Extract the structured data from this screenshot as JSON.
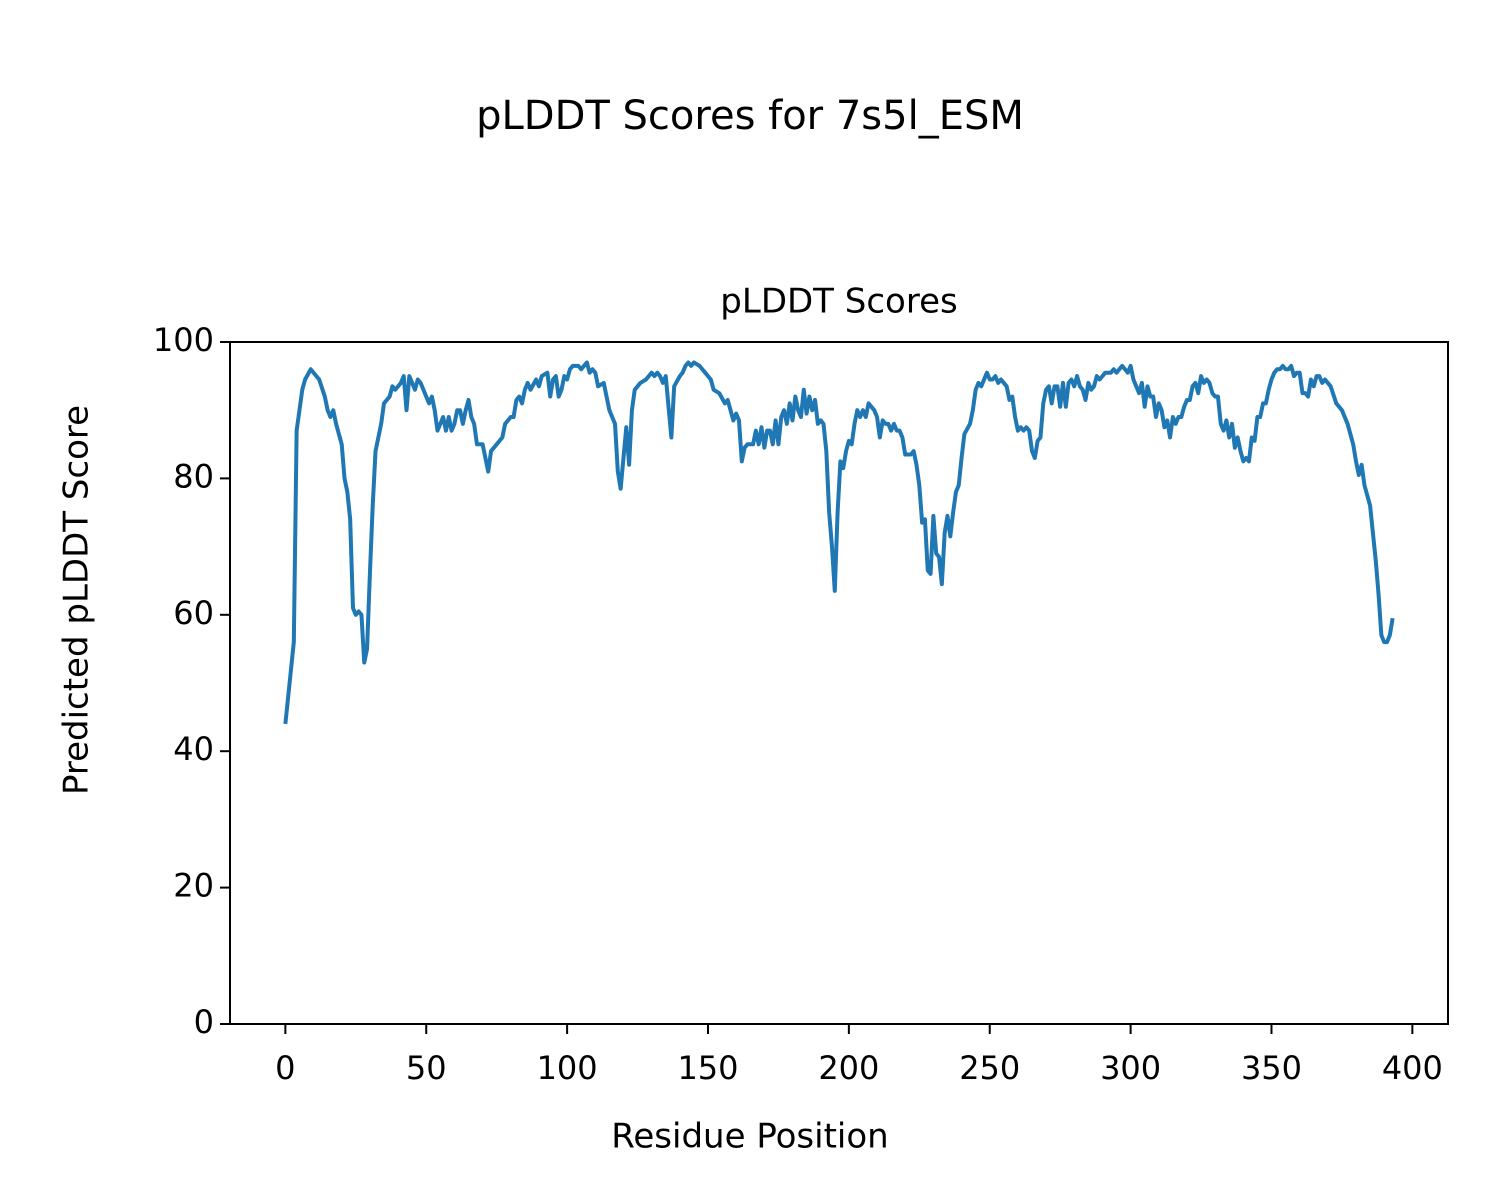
{
  "chart_data": {
    "type": "line",
    "title": "pLDDT Scores for 7s5l_ESM",
    "subtitle": "pLDDT Scores",
    "x_label": "Residue Position",
    "y_label": "Predicted pLDDT Score",
    "color": "#1f77b4",
    "xlim": [
      -19.65,
      412.65
    ],
    "ylim": [
      0,
      100
    ],
    "xticks": [
      0,
      50,
      100,
      150,
      200,
      250,
      300,
      350,
      400
    ],
    "yticks": [
      0,
      20,
      40,
      60,
      80,
      100
    ],
    "x": [
      0,
      3,
      4,
      6,
      7,
      9,
      11,
      12,
      14,
      15,
      16,
      17,
      18,
      20,
      21,
      22,
      23,
      24,
      25,
      26,
      27,
      28,
      29,
      30,
      31,
      32,
      34,
      35,
      37,
      38,
      39,
      41,
      42,
      43,
      44,
      46,
      47,
      48,
      50,
      51,
      52,
      53,
      54,
      55,
      56,
      57,
      58,
      59,
      60,
      61,
      62,
      63,
      64,
      65,
      66,
      67,
      68,
      70,
      71,
      72,
      73,
      75,
      76,
      77,
      78,
      80,
      81,
      82,
      83,
      84,
      85,
      86,
      87,
      89,
      90,
      91,
      93,
      94,
      95,
      96,
      97,
      98,
      99,
      100,
      101,
      102,
      104,
      105,
      106,
      107,
      108,
      109,
      110,
      111,
      113,
      114,
      115,
      117,
      118,
      119,
      120,
      121,
      122,
      123,
      124,
      126,
      128,
      130,
      131,
      132,
      133,
      134,
      135,
      137,
      138,
      140,
      141,
      142,
      143,
      144,
      145,
      147,
      149,
      151,
      152,
      154,
      156,
      157,
      158,
      159,
      160,
      161,
      162,
      163,
      164,
      166,
      167,
      168,
      169,
      170,
      171,
      172,
      173,
      174,
      175,
      176,
      177,
      178,
      179,
      180,
      181,
      182,
      183,
      184,
      185,
      186,
      187,
      188,
      189,
      190,
      191,
      192,
      193,
      194,
      195,
      196,
      197,
      198,
      199,
      200,
      201,
      202,
      203,
      204,
      205,
      206,
      207,
      208,
      209,
      210,
      211,
      212,
      213,
      214,
      215,
      216,
      217,
      218,
      219,
      220,
      221,
      222,
      223,
      224,
      225,
      226,
      227,
      228,
      229,
      230,
      231,
      232,
      233,
      234,
      235,
      236,
      237,
      238,
      239,
      240,
      241,
      243,
      244,
      245,
      246,
      247,
      248,
      249,
      250,
      251,
      252,
      253,
      254,
      255,
      256,
      257,
      258,
      259,
      260,
      261,
      262,
      263,
      264,
      265,
      266,
      267,
      268,
      269,
      270,
      271,
      272,
      273,
      274,
      275,
      276,
      277,
      278,
      279,
      280,
      281,
      282,
      283,
      284,
      285,
      286,
      287,
      288,
      289,
      290,
      291,
      292,
      293,
      294,
      295,
      296,
      297,
      298,
      299,
      300,
      301,
      302,
      303,
      304,
      305,
      306,
      307,
      308,
      309,
      310,
      311,
      312,
      313,
      314,
      315,
      316,
      317,
      318,
      319,
      320,
      321,
      322,
      323,
      324,
      325,
      326,
      327,
      328,
      329,
      330,
      331,
      332,
      333,
      334,
      335,
      336,
      337,
      338,
      339,
      340,
      341,
      342,
      343,
      344,
      345,
      346,
      347,
      348,
      349,
      350,
      351,
      352,
      353,
      354,
      355,
      356,
      357,
      358,
      359,
      360,
      361,
      362,
      363,
      364,
      365,
      366,
      367,
      368,
      369,
      371,
      373,
      375,
      377,
      379,
      380,
      381,
      382,
      383,
      385,
      386,
      387,
      388,
      389,
      390,
      391,
      392,
      393
    ],
    "values": [
      44,
      56,
      87,
      93,
      94.5,
      96,
      95,
      94.5,
      92,
      90,
      89,
      90,
      88,
      85,
      80,
      78,
      74,
      61,
      60,
      60.5,
      60,
      53,
      55,
      66,
      76,
      84,
      88,
      91,
      92,
      93.5,
      93,
      94,
      95,
      90,
      95,
      93,
      94.5,
      94,
      92,
      91,
      92,
      90,
      87,
      88,
      89,
      87,
      89,
      87,
      88,
      90,
      90,
      88,
      90,
      91.5,
      89,
      88,
      85,
      85,
      83,
      81,
      84,
      85,
      85.5,
      86,
      88,
      89,
      89,
      91.5,
      92,
      91,
      93,
      94,
      93,
      94.5,
      93.5,
      95,
      95.5,
      92,
      94.5,
      95,
      92,
      93,
      95,
      94.5,
      96,
      96.5,
      96.5,
      96,
      96.5,
      97,
      95.5,
      96,
      95.5,
      93.5,
      94,
      92,
      90,
      88,
      81,
      78.5,
      83,
      87.5,
      82,
      90,
      93,
      94,
      94.5,
      95.5,
      95,
      95.5,
      95,
      94,
      95,
      86,
      93.5,
      95,
      95.5,
      96.5,
      97,
      96.5,
      97,
      96.5,
      95.5,
      94.5,
      93,
      92.5,
      91,
      91.5,
      90,
      88.5,
      89.5,
      88.5,
      82.5,
      84.5,
      85,
      85,
      87,
      85,
      87.5,
      84.5,
      87,
      87,
      85,
      88.5,
      85,
      89,
      90,
      88,
      91,
      88.5,
      92,
      90,
      89,
      93,
      89.5,
      92,
      90,
      91.5,
      88,
      88.5,
      88,
      84,
      75,
      70,
      63.5,
      75,
      82.5,
      81.5,
      84,
      85.5,
      85,
      88,
      90,
      89,
      90,
      89,
      91,
      90.5,
      90,
      89,
      86,
      88.5,
      88,
      88,
      87,
      88,
      87,
      87,
      86,
      83.5,
      83.5,
      83.5,
      84,
      82,
      79,
      73.5,
      74,
      66.5,
      66,
      74.5,
      69,
      68.5,
      64.5,
      72,
      74.5,
      71.5,
      75,
      78,
      79,
      83,
      86.5,
      88,
      90,
      93,
      94,
      93.5,
      94.5,
      95.5,
      94.5,
      94.5,
      95,
      94,
      94.5,
      94,
      93.5,
      91.5,
      92,
      89,
      87,
      87.5,
      87,
      87.5,
      87,
      84,
      83,
      85.5,
      86,
      91,
      93,
      93.5,
      91,
      93.5,
      93.5,
      90.5,
      94,
      90.5,
      94,
      94.5,
      93.5,
      95,
      93.5,
      93,
      91.5,
      94,
      93,
      93.5,
      95,
      94.5,
      95,
      95.5,
      95.5,
      95.5,
      96,
      95.5,
      96,
      96.5,
      96,
      95.5,
      96.5,
      94.5,
      93.5,
      92.5,
      94,
      90.5,
      93.5,
      92,
      92,
      89,
      91,
      90,
      87.5,
      88.5,
      86,
      89,
      88,
      89,
      89,
      90.5,
      91.5,
      91.5,
      93.5,
      94,
      92.5,
      95,
      94,
      94.5,
      94,
      92.5,
      92,
      92,
      88,
      87,
      88.5,
      86,
      88,
      84.5,
      86,
      84,
      82.5,
      83,
      82.5,
      86,
      85.5,
      89,
      89,
      91,
      91,
      93,
      94.5,
      95.5,
      96,
      96,
      96.5,
      96,
      96,
      96.5,
      95,
      95.5,
      95.5,
      92.5,
      92.5,
      92,
      94.5,
      93.5,
      95,
      95,
      94,
      94.5,
      93.5,
      91,
      90,
      88,
      85,
      82.5,
      80.5,
      82,
      79,
      76,
      72,
      68,
      63,
      57,
      56,
      56,
      57,
      59.5
    ]
  }
}
